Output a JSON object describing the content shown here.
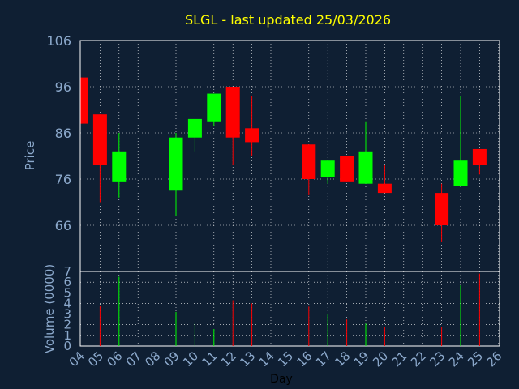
{
  "colors": {
    "background": "#0f1f33",
    "frame": "#ffffff",
    "grid": "#ffffff",
    "title": "#ffff00",
    "axis_text": "#8ca9cc",
    "up": "#00ff00",
    "down": "#ff0000"
  },
  "chart_data": {
    "type": "candlestick",
    "title": "SLGL - last updated 25/03/2026",
    "xlabel": "Day",
    "ylabel": "Price",
    "volume_label": "Volume (0000)",
    "x_ticks": [
      "04",
      "05",
      "06",
      "07",
      "08",
      "09",
      "10",
      "11",
      "12",
      "13",
      "14",
      "15",
      "16",
      "17",
      "18",
      "19",
      "20",
      "21",
      "22",
      "23",
      "24",
      "25",
      "26"
    ],
    "price_ylim": [
      56,
      106
    ],
    "price_ticks": [
      66,
      76,
      86,
      96,
      106
    ],
    "volume_ylim": [
      0,
      7
    ],
    "volume_ticks": [
      0,
      1,
      2,
      3,
      4,
      5,
      6,
      7
    ],
    "grid": true,
    "candles": [
      {
        "day": "04",
        "open": 98,
        "high": 98,
        "low": 88,
        "close": 88,
        "volume": 0
      },
      {
        "day": "05",
        "open": 90,
        "high": 90,
        "low": 71,
        "close": 79,
        "volume": 3.8
      },
      {
        "day": "06",
        "open": 75.5,
        "high": 86,
        "low": 72,
        "close": 82,
        "volume": 6.5
      },
      {
        "day": "09",
        "open": 73.5,
        "high": 86,
        "low": 68,
        "close": 85,
        "volume": 3.2
      },
      {
        "day": "10",
        "open": 85,
        "high": 89,
        "low": 82,
        "close": 89,
        "volume": 2.1
      },
      {
        "day": "11",
        "open": 88.5,
        "high": 94.5,
        "low": 87.5,
        "close": 94.5,
        "volume": 1.6
      },
      {
        "day": "12",
        "open": 96,
        "high": 96,
        "low": 79,
        "close": 85,
        "volume": 4.3
      },
      {
        "day": "13",
        "open": 87,
        "high": 94,
        "low": 81,
        "close": 84,
        "volume": 4
      },
      {
        "day": "16",
        "open": 83.5,
        "high": 83.5,
        "low": 72.5,
        "close": 76,
        "volume": 3.7
      },
      {
        "day": "17",
        "open": 76.5,
        "high": 80,
        "low": 75,
        "close": 80,
        "volume": 3
      },
      {
        "day": "18",
        "open": 81,
        "high": 81,
        "low": 75.5,
        "close": 75.5,
        "volume": 2.5
      },
      {
        "day": "19",
        "open": 75,
        "high": 88.5,
        "low": 75,
        "close": 82,
        "volume": 2.1
      },
      {
        "day": "20",
        "open": 75,
        "high": 79,
        "low": 73,
        "close": 73,
        "volume": 1.8
      },
      {
        "day": "23",
        "open": 73,
        "high": 75,
        "low": 62.5,
        "close": 66,
        "volume": 1.8
      },
      {
        "day": "24",
        "open": 74.5,
        "high": 94,
        "low": 74.5,
        "close": 80,
        "volume": 5.7
      },
      {
        "day": "25",
        "open": 82.5,
        "high": 82.5,
        "low": 77,
        "close": 79,
        "volume": 6.8
      }
    ]
  }
}
